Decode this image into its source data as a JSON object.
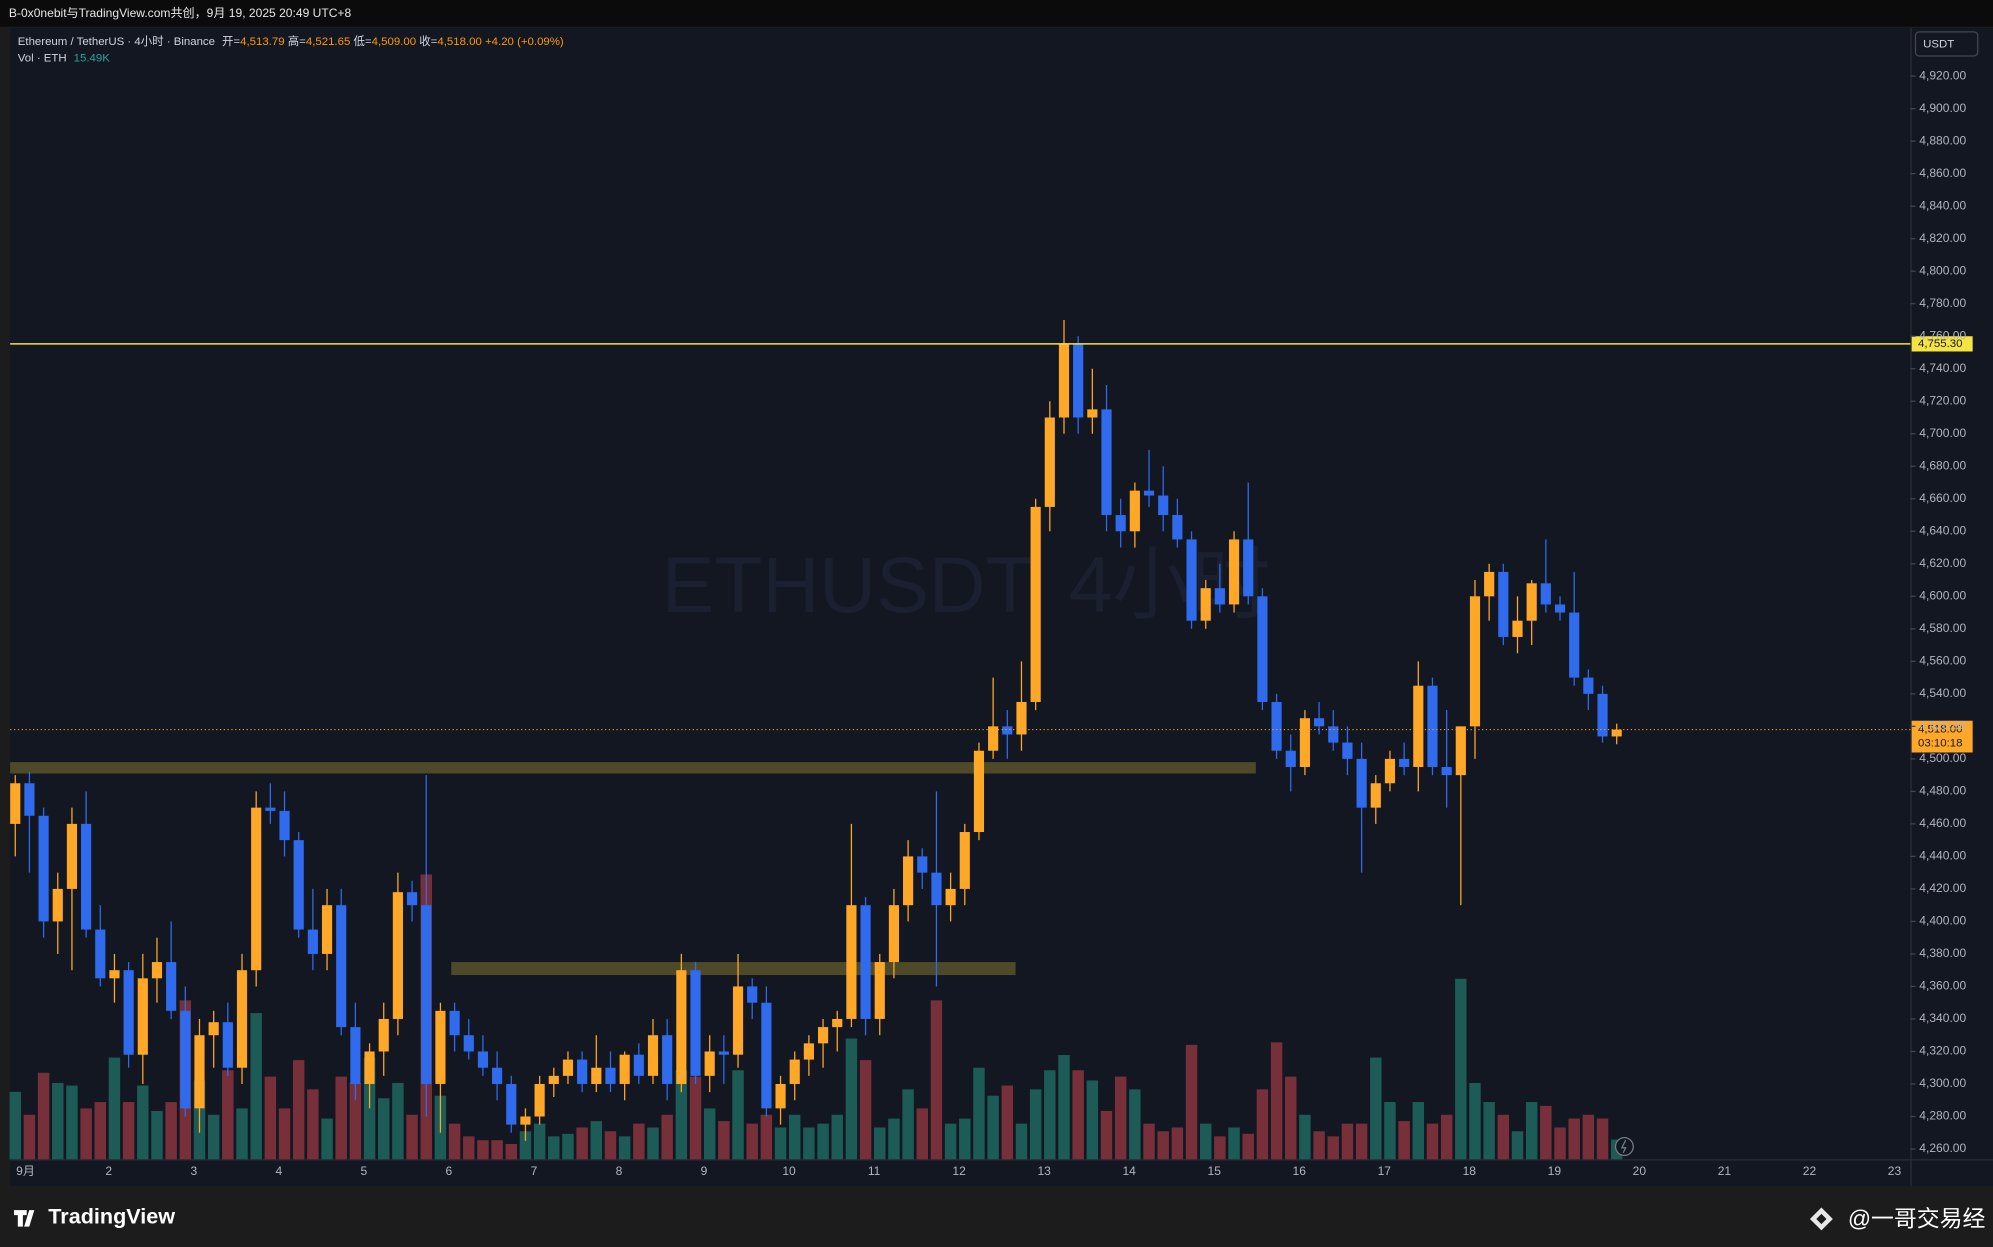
{
  "header": {
    "share_text": "B-0x0nebit与TradingView.com共创，9月 19, 2025 20:49 UTC+8"
  },
  "footer": {
    "brand": "TradingView",
    "author": "@一哥交易经"
  },
  "chart_data": {
    "type": "candlestick",
    "symbol_title": "Ethereum / TetherUS · 4小时 · Binance",
    "watermark": "ETHUSDT, 4小时",
    "ohlc_names": [
      "开=",
      "高=",
      "低=",
      "收="
    ],
    "ohlc_labels": [
      "4,513.79",
      "4,521.65",
      "4,509.00",
      "4,518.00"
    ],
    "change_label": "+4.20 (+0.09%)",
    "volume_title": "Vol · ETH",
    "volume_label": "15.49K",
    "currency": "USDT",
    "countdown": "03:10:18",
    "up_color": "#ffa726",
    "down_color": "#2f6bec",
    "volume_up_color": "#1d5b57",
    "volume_down_color": "#77303a",
    "open": [
      4460,
      4485,
      4465,
      4400,
      4420,
      4460,
      4395,
      4365,
      4370,
      4318,
      4365,
      4375,
      4345,
      4285,
      4330,
      4338,
      4310,
      4370,
      4470,
      4468,
      4450,
      4395,
      4380,
      4410,
      4335,
      4300,
      4320,
      4340,
      4418,
      4410,
      4300,
      4345,
      4330,
      4320,
      4310,
      4300,
      4275,
      4280,
      4300,
      4305,
      4315,
      4300,
      4310,
      4300,
      4318,
      4305,
      4330,
      4300,
      4370,
      4305,
      4320,
      4318,
      4360,
      4350,
      4285,
      4300,
      4315,
      4325,
      4335,
      4340,
      4410,
      4340,
      4375,
      4410,
      4440,
      4430,
      4410,
      4420,
      4455,
      4505,
      4520,
      4515,
      4535,
      4655,
      4710,
      4755,
      4710,
      4715,
      4650,
      4640,
      4665,
      4662,
      4650,
      4635,
      4585,
      4605,
      4595,
      4635,
      4600,
      4535,
      4505,
      4495,
      4525,
      4520,
      4510,
      4500,
      4470,
      4485,
      4500,
      4495,
      4545,
      4495,
      4490,
      4520,
      4600,
      4615,
      4575,
      4585,
      4608,
      4595,
      4590,
      4550,
      4540,
      4513.79
    ],
    "high": [
      4490,
      4492,
      4470,
      4430,
      4470,
      4480,
      4410,
      4380,
      4375,
      4380,
      4390,
      4400,
      4360,
      4340,
      4345,
      4350,
      4380,
      4480,
      4485,
      4480,
      4455,
      4420,
      4420,
      4420,
      4350,
      4325,
      4350,
      4430,
      4425,
      4490,
      4350,
      4350,
      4340,
      4330,
      4320,
      4305,
      4285,
      4305,
      4310,
      4320,
      4320,
      4330,
      4320,
      4320,
      4325,
      4340,
      4340,
      4380,
      4375,
      4330,
      4330,
      4380,
      4365,
      4360,
      4305,
      4320,
      4330,
      4340,
      4345,
      4460,
      4415,
      4380,
      4420,
      4450,
      4445,
      4480,
      4430,
      4460,
      4510,
      4550,
      4530,
      4560,
      4660,
      4720,
      4770,
      4760,
      4740,
      4730,
      4660,
      4670,
      4690,
      4680,
      4660,
      4640,
      4610,
      4620,
      4640,
      4670,
      4605,
      4540,
      4515,
      4530,
      4535,
      4530,
      4520,
      4510,
      4490,
      4505,
      4510,
      4560,
      4550,
      4530,
      4520,
      4610,
      4620,
      4620,
      4600,
      4610,
      4635,
      4600,
      4615,
      4555,
      4545,
      4521.65
    ],
    "low": [
      4440,
      4430,
      4390,
      4380,
      4370,
      4390,
      4360,
      4350,
      4310,
      4300,
      4350,
      4340,
      4280,
      4270,
      4310,
      4305,
      4300,
      4360,
      4460,
      4440,
      4390,
      4370,
      4370,
      4330,
      4290,
      4285,
      4305,
      4330,
      4400,
      4280,
      4270,
      4320,
      4315,
      4305,
      4290,
      4270,
      4265,
      4275,
      4292,
      4300,
      4295,
      4295,
      4295,
      4290,
      4300,
      4300,
      4290,
      4295,
      4300,
      4295,
      4300,
      4310,
      4340,
      4280,
      4275,
      4290,
      4305,
      4310,
      4320,
      4335,
      4330,
      4330,
      4365,
      4400,
      4420,
      4360,
      4400,
      4410,
      4450,
      4500,
      4500,
      4505,
      4530,
      4640,
      4700,
      4700,
      4700,
      4640,
      4630,
      4630,
      4655,
      4640,
      4630,
      4580,
      4580,
      4590,
      4590,
      4595,
      4530,
      4500,
      4480,
      4490,
      4515,
      4505,
      4490,
      4430,
      4460,
      4480,
      4490,
      4480,
      4490,
      4470,
      4410,
      4500,
      4585,
      4570,
      4565,
      4570,
      4590,
      4585,
      4545,
      4530,
      4510,
      4509
    ],
    "close": [
      4485,
      4465,
      4400,
      4420,
      4460,
      4395,
      4365,
      4370,
      4318,
      4365,
      4375,
      4345,
      4285,
      4330,
      4338,
      4310,
      4370,
      4470,
      4468,
      4450,
      4395,
      4380,
      4410,
      4335,
      4300,
      4320,
      4340,
      4418,
      4410,
      4300,
      4345,
      4330,
      4320,
      4310,
      4300,
      4275,
      4280,
      4300,
      4305,
      4315,
      4300,
      4310,
      4300,
      4318,
      4305,
      4330,
      4300,
      4370,
      4305,
      4320,
      4318,
      4360,
      4350,
      4285,
      4300,
      4315,
      4325,
      4335,
      4340,
      4410,
      4340,
      4375,
      4410,
      4440,
      4430,
      4410,
      4420,
      4455,
      4505,
      4520,
      4515,
      4535,
      4655,
      4710,
      4755,
      4710,
      4715,
      4650,
      4640,
      4665,
      4662,
      4650,
      4635,
      4585,
      4605,
      4595,
      4635,
      4600,
      4535,
      4505,
      4495,
      4525,
      4520,
      4510,
      4500,
      4470,
      4485,
      4500,
      4495,
      4545,
      4495,
      4490,
      4520,
      4600,
      4615,
      4575,
      4585,
      4608,
      4595,
      4590,
      4550,
      4540,
      4513.79,
      4518
    ],
    "volume": [
      53,
      35,
      68,
      60,
      58,
      40,
      45,
      80,
      45,
      58,
      38,
      45,
      125,
      62,
      35,
      70,
      40,
      115,
      65,
      40,
      78,
      55,
      32,
      65,
      60,
      80,
      48,
      60,
      35,
      224,
      50,
      28,
      18,
      15,
      15,
      12,
      22,
      28,
      18,
      20,
      25,
      30,
      22,
      18,
      28,
      25,
      35,
      70,
      65,
      40,
      30,
      70,
      28,
      35,
      25,
      35,
      25,
      28,
      35,
      95,
      78,
      25,
      32,
      55,
      40,
      125,
      28,
      32,
      72,
      50,
      58,
      28,
      55,
      70,
      82,
      70,
      62,
      38,
      65,
      55,
      28,
      22,
      25,
      90,
      28,
      18,
      25,
      20,
      55,
      92,
      65,
      35,
      22,
      18,
      28,
      28,
      80,
      45,
      30,
      45,
      28,
      35,
      142,
      60,
      45,
      35,
      22,
      45,
      42,
      25,
      32,
      35,
      32,
      15.49
    ],
    "x_labels": [
      "9月",
      "2",
      "3",
      "4",
      "5",
      "6",
      "7",
      "8",
      "9",
      "10",
      "11",
      "12",
      "13",
      "14",
      "15",
      "16",
      "17",
      "18",
      "19",
      "20",
      "21",
      "22",
      "23"
    ],
    "levels": [
      {
        "value": 4755.3,
        "label": "4,755.30",
        "color": "#f5e33f"
      }
    ],
    "zones": [
      [
        4491,
        4498
      ],
      [
        4367,
        4375
      ]
    ],
    "zone_color": "#59532a",
    "ylim": [
      4253.7,
      4949.6
    ],
    "yticks": [
      {
        "value": 4260,
        "label": "4,260.00"
      },
      {
        "value": 4280,
        "label": "4,280.00"
      },
      {
        "value": 4300,
        "label": "4,300.00"
      },
      {
        "value": 4320,
        "label": "4,320.00"
      },
      {
        "value": 4340,
        "label": "4,340.00"
      },
      {
        "value": 4360,
        "label": "4,360.00"
      },
      {
        "value": 4380,
        "label": "4,380.00"
      },
      {
        "value": 4400,
        "label": "4,400.00"
      },
      {
        "value": 4420,
        "label": "4,420.00"
      },
      {
        "value": 4440,
        "label": "4,440.00"
      },
      {
        "value": 4460,
        "label": "4,460.00"
      },
      {
        "value": 4480,
        "label": "4,480.00"
      },
      {
        "value": 4500,
        "label": "4,500.00"
      },
      {
        "value": 4520,
        "label": "4,520.00"
      },
      {
        "value": 4540,
        "label": "4,540.00"
      },
      {
        "value": 4560,
        "label": "4,560.00"
      },
      {
        "value": 4580,
        "label": "4,580.00"
      },
      {
        "value": 4600,
        "label": "4,600.00"
      },
      {
        "value": 4620,
        "label": "4,620.00"
      },
      {
        "value": 4640,
        "label": "4,640.00"
      },
      {
        "value": 4660,
        "label": "4,660.00"
      },
      {
        "value": 4680,
        "label": "4,680.00"
      },
      {
        "value": 4700,
        "label": "4,700.00"
      },
      {
        "value": 4720,
        "label": "4,720.00"
      },
      {
        "value": 4740,
        "label": "4,740.00"
      },
      {
        "value": 4760,
        "label": "4,760.00"
      },
      {
        "value": 4780,
        "label": "4,780.00"
      },
      {
        "value": 4800,
        "label": "4,800.00"
      },
      {
        "value": 4820,
        "label": "4,820.00"
      },
      {
        "value": 4840,
        "label": "4,840.00"
      },
      {
        "value": 4860,
        "label": "4,860.00"
      },
      {
        "value": 4880,
        "label": "4,880.00"
      },
      {
        "value": 4900,
        "label": "4,900.00"
      },
      {
        "value": 4920,
        "label": "4,920.00"
      }
    ]
  }
}
